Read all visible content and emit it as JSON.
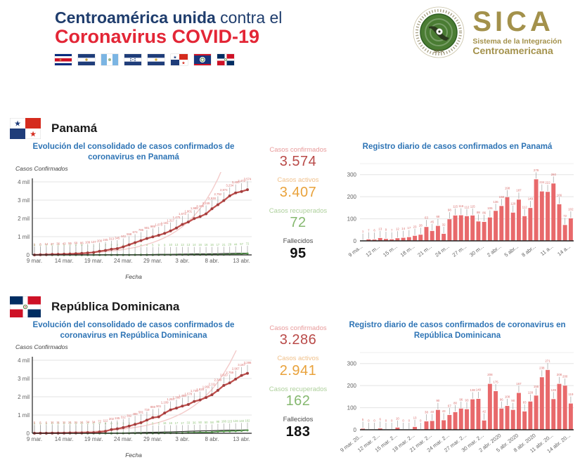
{
  "header": {
    "title_bold": "Centroamérica unida",
    "title_rest": " contra el",
    "title_line2": "Coronavirus COVID-19",
    "flags": [
      "costa-rica",
      "el-salvador",
      "guatemala",
      "honduras",
      "nicaragua",
      "panama",
      "belize",
      "dominican-republic"
    ],
    "sica": {
      "acronym": "SICA",
      "subtitle1": "Sistema de la Integración",
      "subtitle2": "Centroamericana"
    }
  },
  "colors": {
    "navy": "#1f3d6d",
    "header_red": "#e32636",
    "chart_title_blue": "#2e74b5",
    "bar_fill": "#e8696b",
    "annotation_red": "#d9706e",
    "line_red": "#c0504d",
    "marker_red": "#a13e3e",
    "recovered_green": "#5f9e56",
    "recovered_label_green": "#93c47d",
    "active_orange": "#e9a23b",
    "deaths_black": "#212121",
    "trend_pink": "#f3cbca",
    "axis_gray": "#616161",
    "grid_gray": "#e3e3e3",
    "sica_gold": "#a3914b"
  },
  "sections": [
    {
      "country": "Panamá",
      "stats": [
        {
          "label": "Casos confirmados",
          "value": "3.574"
        },
        {
          "label": "Casos activos",
          "value": "3.407"
        },
        {
          "label": "Casos recuperados",
          "value": "72"
        },
        {
          "label": "Fallecidos",
          "value": "95"
        }
      ]
    },
    {
      "country": "República Dominicana",
      "stats": [
        {
          "label": "Casos confirmados",
          "value": "3.286"
        },
        {
          "label": "Casos activos",
          "value": "2.941"
        },
        {
          "label": "Casos recuperados",
          "value": "162"
        },
        {
          "label": "Fallecidos",
          "value": "183"
        }
      ]
    }
  ],
  "chart_data": [
    {
      "id": "panama-cumulative",
      "type": "line",
      "title": "Evolución del consolidado de casos confirmados de coronavirus en Panamá",
      "xlabel": "Fecha",
      "ylabel": "Casos Confirmados",
      "x_ticks": [
        "9 mar.",
        "14 mar.",
        "19 mar.",
        "24 mar.",
        "29 mar.",
        "3 abr.",
        "8 abr.",
        "13 abr."
      ],
      "x_tick_idx": [
        0,
        5,
        10,
        15,
        20,
        25,
        30,
        35
      ],
      "y_ticks": [
        "0",
        "1 mil",
        "2 mil",
        "3 mil",
        "4 mil"
      ],
      "ylim": [
        0,
        4000
      ],
      "trendline": true,
      "series": [
        {
          "name": "Casos confirmados",
          "role": "confirmed",
          "values": [
            1,
            8,
            14,
            27,
            36,
            43,
            55,
            69,
            86,
            109,
            137,
            200,
            245,
            313,
            345,
            443,
            558,
            674,
            786,
            901,
            989,
            1075,
            1181,
            1317,
            1475,
            1673,
            1801,
            1988,
            2100,
            2249,
            2528,
            2752,
            2974,
            3234,
            3400,
            3472,
            3574
          ]
        },
        {
          "name": "Casos recuperados",
          "role": "recovered",
          "values": [
            0,
            0,
            0,
            0,
            0,
            0,
            0,
            0,
            0,
            1,
            1,
            1,
            2,
            2,
            2,
            2,
            2,
            4,
            4,
            4,
            5,
            9,
            9,
            10,
            13,
            13,
            13,
            14,
            16,
            16,
            16,
            17,
            21,
            29,
            44,
            57,
            72
          ]
        },
        {
          "name": "Fallecidos",
          "role": "deaths",
          "values": [
            0,
            0,
            0,
            0,
            0,
            1,
            1,
            1,
            1,
            2,
            3,
            3,
            6,
            6,
            6,
            8,
            8,
            9,
            14,
            17,
            24,
            30,
            30,
            32,
            37,
            41,
            46,
            54,
            55,
            59,
            63,
            66,
            74,
            79,
            87,
            94,
            95
          ]
        }
      ]
    },
    {
      "id": "panama-daily",
      "type": "bar",
      "title": "Registro diario de casos confirmados en Panamá",
      "x_ticks": [
        "9 ma...",
        "12 m...",
        "15 m...",
        "18 m...",
        "21 m...",
        "24 m...",
        "27 m...",
        "30 m...",
        "2 abr...",
        "5 abr...",
        "8 abr...",
        "11 a...",
        "14 a..."
      ],
      "x_tick_idx": [
        0,
        3,
        6,
        9,
        12,
        15,
        18,
        21,
        24,
        27,
        30,
        33,
        36
      ],
      "y_ticks": [
        "0",
        "100",
        "200",
        "300"
      ],
      "ylim": [
        0,
        350
      ],
      "values": [
        1,
        7,
        6,
        13,
        9,
        7,
        12,
        14,
        17,
        23,
        28,
        63,
        45,
        68,
        32,
        98,
        115,
        116,
        112,
        115,
        88,
        86,
        106,
        136,
        158,
        198,
        128,
        187,
        112,
        149,
        279,
        224,
        222,
        260,
        166,
        72,
        102
      ]
    },
    {
      "id": "rd-cumulative",
      "type": "line",
      "title": "Evolución del consolidado de casos confirmados de coronavirus en República Dominicana",
      "xlabel": "Fecha",
      "ylabel": "Casos Confirmados",
      "x_ticks": [
        "9 mar.",
        "14 mar.",
        "19 mar.",
        "24 mar.",
        "29 mar.",
        "3 abr.",
        "8 abr.",
        "13 abr."
      ],
      "x_tick_idx": [
        0,
        5,
        10,
        15,
        20,
        25,
        30,
        35
      ],
      "y_ticks": [
        "0",
        "1 mil",
        "2 mil",
        "3 mil",
        "4 mil"
      ],
      "ylim": [
        0,
        4000
      ],
      "trendline": true,
      "series": [
        {
          "name": "Casos confirmados",
          "role": "confirmed",
          "values": [
            5,
            5,
            5,
            11,
            11,
            11,
            21,
            21,
            21,
            34,
            34,
            72,
            112,
            202,
            245,
            312,
            392,
            488,
            581,
            719,
            859,
            901,
            1109,
            1284,
            1380,
            1488,
            1578,
            1745,
            1828,
            1956,
            2111,
            2349,
            2620,
            2759,
            2967,
            3167,
            3286
          ]
        },
        {
          "name": "Casos recuperados",
          "role": "recovered",
          "values": [
            0,
            0,
            0,
            0,
            0,
            0,
            0,
            0,
            0,
            0,
            0,
            0,
            0,
            0,
            3,
            3,
            3,
            3,
            3,
            3,
            5,
            5,
            16,
            16,
            17,
            17,
            33,
            36,
            50,
            50,
            58,
            98,
            108,
            115,
            126,
            140,
            162
          ]
        },
        {
          "name": "Fallecidos",
          "role": "deaths",
          "values": [
            0,
            0,
            0,
            0,
            0,
            0,
            0,
            1,
            1,
            2,
            2,
            3,
            3,
            6,
            10,
            20,
            28,
            39,
            42,
            51,
            57,
            60,
            68,
            77,
            86,
            98,
            108,
            118,
            126,
            135,
            141,
            150,
            160,
            169,
            173,
            177,
            183
          ]
        }
      ]
    },
    {
      "id": "rd-daily",
      "type": "bar",
      "title": "Registro diario de casos confirmados de coronavirus en República Dominicana",
      "x_ticks": [
        "9 mar. 20...",
        "12 mar. 2...",
        "15 mar. 2...",
        "18 mar. 2...",
        "21 mar. 2...",
        "24 mar. 2...",
        "27 mar. 2...",
        "30 mar. 2...",
        "2 abr. 2020",
        "5 abr. 2020",
        "8 abr. 2020",
        "11 abr. 20...",
        "14 abr. 20..."
      ],
      "x_tick_idx": [
        0,
        3,
        6,
        9,
        12,
        15,
        18,
        21,
        24,
        27,
        30,
        33,
        36
      ],
      "y_ticks": [
        "0",
        "100",
        "200",
        "300"
      ],
      "ylim": [
        0,
        350
      ],
      "values": [
        5,
        0,
        0,
        6,
        0,
        0,
        10,
        0,
        0,
        13,
        0,
        38,
        40,
        90,
        43,
        67,
        80,
        96,
        93,
        138,
        140,
        42,
        208,
        175,
        96,
        108,
        90,
        167,
        83,
        128,
        155,
        238,
        271,
        139,
        208,
        200,
        119
      ]
    }
  ]
}
